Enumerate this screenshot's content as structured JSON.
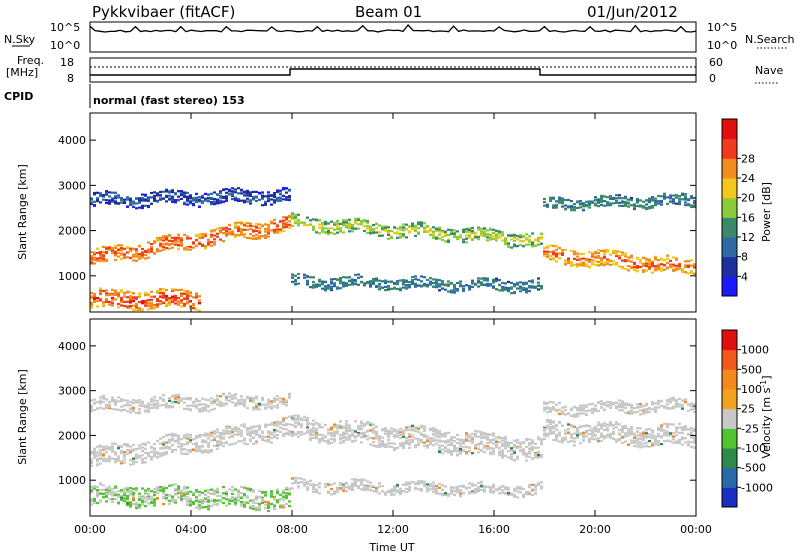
{
  "header": {
    "station": "Pykkvibaer (fitACF)",
    "beam": "Beam 01",
    "date": "01/Jun/2012"
  },
  "params": {
    "nsky_label": "N.Sky",
    "nsky_ticks": [
      "10^5",
      "10^0"
    ],
    "nsearch_label": "N.Search",
    "freq_label_1": "Freq.",
    "freq_label_2": "[MHz]",
    "freq_ticks": [
      "18",
      "8"
    ],
    "nave_label": "Nave",
    "nave_ticks": [
      "60",
      "0"
    ],
    "cpid_label": "CPID",
    "cpid_text": "normal (fast stereo) 153"
  },
  "chart_data": [
    {
      "type": "heatmap",
      "name": "Power",
      "xlabel": "",
      "ylabel": "Slant Range [km]",
      "yticks": [
        "1000",
        "2000",
        "3000",
        "4000"
      ],
      "ylim": [
        200,
        4600
      ],
      "xlim": [
        "00:00",
        "24:00"
      ],
      "colorbar": {
        "label": "Power [dB]",
        "ticks": [
          "4",
          "8",
          "12",
          "16",
          "20",
          "24",
          "28"
        ],
        "colors": [
          "#1a1aff",
          "#1c2f9c",
          "#2f6aa6",
          "#3a8a6a",
          "#8ccc3a",
          "#f2c81c",
          "#f28c1c",
          "#f03c1c",
          "#e01010"
        ]
      },
      "bands": [
        {
          "t0": 0.0,
          "t1": 8.0,
          "r_start": 1400,
          "r_end": 2200,
          "width": 350,
          "dB": 26
        },
        {
          "t0": 8.0,
          "t1": 18.0,
          "r_start": 2200,
          "r_end": 1800,
          "width": 300,
          "dB": 16
        },
        {
          "t0": 18.0,
          "t1": 24.0,
          "r_start": 1500,
          "r_end": 1200,
          "width": 350,
          "dB": 24
        },
        {
          "t0": 0.0,
          "t1": 8.0,
          "r_start": 2700,
          "r_end": 2800,
          "width": 300,
          "dB": 6
        },
        {
          "t0": 0.0,
          "t1": 4.5,
          "r_start": 500,
          "r_end": 500,
          "width": 400,
          "dB": 27
        },
        {
          "t0": 8.0,
          "t1": 18.0,
          "r_start": 900,
          "r_end": 800,
          "width": 250,
          "dB": 10
        },
        {
          "t0": 18.0,
          "t1": 24.0,
          "r_start": 2600,
          "r_end": 2700,
          "width": 250,
          "dB": 10
        }
      ]
    },
    {
      "type": "heatmap",
      "name": "Velocity",
      "xlabel": "Time UT",
      "ylabel": "Slant Range [km]",
      "yticks": [
        "1000",
        "2000",
        "3000",
        "4000"
      ],
      "ylim": [
        200,
        4600
      ],
      "xticks": [
        "00:00",
        "04:00",
        "08:00",
        "12:00",
        "16:00",
        "20:00",
        "00:00"
      ],
      "colorbar": {
        "label": "Velocity [m s^-1]",
        "ticks": [
          "1000",
          "500",
          "100",
          "25",
          "-25",
          "-100",
          "-500",
          "-1000"
        ],
        "colors": [
          "#1a2fbf",
          "#2a6aa8",
          "#2f8a4a",
          "#52c432",
          "#c8c8c8",
          "#f2a21c",
          "#f28a1c",
          "#f25a1c",
          "#e01010"
        ]
      },
      "bands": [
        {
          "t0": 0.0,
          "t1": 8.0,
          "r_start": 1500,
          "r_end": 2200,
          "width": 450,
          "v": 0
        },
        {
          "t0": 8.0,
          "t1": 18.0,
          "r_start": 2200,
          "r_end": 1700,
          "width": 500,
          "v": 0
        },
        {
          "t0": 18.0,
          "t1": 24.0,
          "r_start": 2100,
          "r_end": 2000,
          "width": 450,
          "v": 0
        },
        {
          "t0": 0.0,
          "t1": 8.0,
          "r_start": 2700,
          "r_end": 2800,
          "width": 300,
          "v": 0
        },
        {
          "t0": 0.0,
          "t1": 8.0,
          "r_start": 700,
          "r_end": 600,
          "width": 450,
          "v": 80
        },
        {
          "t0": 8.0,
          "t1": 18.0,
          "r_start": 900,
          "r_end": 800,
          "width": 250,
          "v": 0
        },
        {
          "t0": 18.0,
          "t1": 24.0,
          "r_start": 2600,
          "r_end": 2700,
          "width": 250,
          "v": 0
        }
      ]
    }
  ],
  "labels": {
    "time_ut": "Time UT"
  }
}
